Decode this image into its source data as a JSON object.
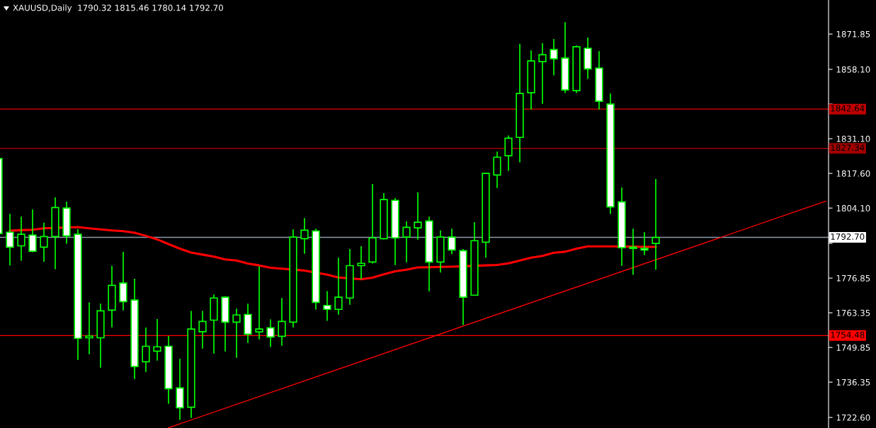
{
  "chart_data": {
    "type": "candlestick",
    "title": "XAUUSD,Daily  1790.32 1815.46 1780.14 1792.70",
    "color": "#00ff00",
    "categories": [
      null,
      null,
      null,
      null,
      null,
      null,
      null,
      null,
      null,
      null,
      null,
      null,
      null,
      null,
      null,
      null,
      null,
      null,
      null,
      null,
      null,
      null,
      null,
      null,
      null,
      null,
      null,
      null,
      null,
      null,
      null,
      null,
      null,
      null,
      null,
      null,
      null,
      null,
      null,
      null,
      null,
      null,
      null,
      null,
      null,
      null,
      null,
      null,
      null,
      null,
      null,
      null,
      null,
      null,
      null,
      null,
      null,
      null,
      null,
      null,
      null,
      null,
      null,
      null,
      null,
      null,
      null,
      null,
      null,
      null,
      null,
      null,
      null,
      null
    ],
    "ohlc": [
      [
        1823.4,
        1823.4,
        1794.2,
        1794.2
      ],
      [
        1794.7,
        1801.9,
        1781.8,
        1788.9
      ],
      [
        1789.4,
        1800.8,
        1783.6,
        1793.9
      ],
      [
        1793.6,
        1803.6,
        1786.9,
        1787.3
      ],
      [
        1788.9,
        1798.4,
        1783.2,
        1793.0
      ],
      [
        1793.0,
        1808.3,
        1780.3,
        1804.3
      ],
      [
        1804.1,
        1806.6,
        1790.2,
        1793.3
      ],
      [
        1793.9,
        1795.9,
        1745.0,
        1753.4
      ],
      [
        1753.6,
        1767.4,
        1747.2,
        1754.3
      ],
      [
        1753.6,
        1766.9,
        1742.0,
        1764.1
      ],
      [
        1764.4,
        1781.6,
        1757.7,
        1774.0
      ],
      [
        1774.9,
        1787.1,
        1764.3,
        1767.7
      ],
      [
        1768.3,
        1776.6,
        1737.6,
        1742.4
      ],
      [
        1744.3,
        1757.6,
        1740.3,
        1750.3
      ],
      [
        1748.4,
        1760.9,
        1744.7,
        1750.1
      ],
      [
        1750.3,
        1754.3,
        1727.9,
        1733.8
      ],
      [
        1734.1,
        1745.4,
        1721.7,
        1726.4
      ],
      [
        1726.6,
        1764.1,
        1722.4,
        1757.0
      ],
      [
        1756.0,
        1764.1,
        1749.4,
        1760.0
      ],
      [
        1760.5,
        1770.5,
        1747.5,
        1769.1
      ],
      [
        1769.4,
        1769.8,
        1748.3,
        1759.7
      ],
      [
        1759.7,
        1765.0,
        1745.8,
        1762.5
      ],
      [
        1762.7,
        1766.9,
        1751.6,
        1755.0
      ],
      [
        1755.9,
        1781.4,
        1753.0,
        1757.0
      ],
      [
        1757.5,
        1760.8,
        1750.0,
        1753.9
      ],
      [
        1754.2,
        1769.1,
        1750.5,
        1760.0
      ],
      [
        1759.7,
        1795.8,
        1757.7,
        1792.8
      ],
      [
        1792.2,
        1800.2,
        1786.3,
        1795.5
      ],
      [
        1795.2,
        1796.1,
        1764.6,
        1767.4
      ],
      [
        1766.2,
        1771.8,
        1760.2,
        1764.7
      ],
      [
        1764.7,
        1784.8,
        1762.6,
        1769.4
      ],
      [
        1769.1,
        1788.2,
        1766.5,
        1781.7
      ],
      [
        1781.7,
        1789.3,
        1776.5,
        1782.6
      ],
      [
        1783.1,
        1813.5,
        1782.5,
        1792.5
      ],
      [
        1792.2,
        1809.9,
        1791.9,
        1807.4
      ],
      [
        1807.1,
        1808.0,
        1781.9,
        1792.5
      ],
      [
        1792.8,
        1798.9,
        1783.0,
        1796.6
      ],
      [
        1796.4,
        1810.2,
        1791.8,
        1798.6
      ],
      [
        1799.1,
        1800.8,
        1771.7,
        1783.1
      ],
      [
        1783.1,
        1795.5,
        1779.0,
        1792.8
      ],
      [
        1792.8,
        1796.1,
        1786.2,
        1787.8
      ],
      [
        1787.5,
        1788.2,
        1758.6,
        1769.4
      ],
      [
        1770.2,
        1798.6,
        1770.2,
        1791.4
      ],
      [
        1790.8,
        1817.9,
        1784.8,
        1817.6
      ],
      [
        1817.0,
        1826.1,
        1811.9,
        1823.9
      ],
      [
        1824.5,
        1832.4,
        1818.6,
        1831.3
      ],
      [
        1831.6,
        1868.0,
        1821.9,
        1848.7
      ],
      [
        1849.0,
        1865.5,
        1842.5,
        1861.4
      ],
      [
        1861.1,
        1868.3,
        1844.7,
        1863.8
      ],
      [
        1865.8,
        1869.9,
        1855.8,
        1862.2
      ],
      [
        1862.5,
        1876.5,
        1848.9,
        1850.1
      ],
      [
        1849.8,
        1867.4,
        1848.9,
        1866.9
      ],
      [
        1866.3,
        1870.5,
        1854.4,
        1858.3
      ],
      [
        1858.6,
        1865.2,
        1842.5,
        1845.7
      ],
      [
        1844.6,
        1848.7,
        1801.8,
        1804.6
      ],
      [
        1806.5,
        1812.1,
        1781.6,
        1788.7
      ],
      [
        1788.9,
        1796.1,
        1778.1,
        1788.4
      ],
      [
        1788.4,
        1794.7,
        1785.8,
        1787.8
      ],
      [
        1790.32,
        1815.46,
        1780.14,
        1792.7
      ],
      null,
      null,
      null,
      null,
      null,
      null,
      null,
      null,
      null,
      null,
      null,
      null,
      null,
      null,
      null
    ],
    "series": [
      {
        "type": "line",
        "color": "#ff0000",
        "values": [
          null,
          1795.3,
          1795.5,
          1795.7,
          1796.2,
          null,
          null,
          1796.7,
          1796.2,
          1795.8,
          1795.4,
          1795.1,
          1794.5,
          1793.3,
          1791.9,
          1790.1,
          1788.3,
          1786.8,
          1786.0,
          1785.2,
          1784.1,
          1783.7,
          1782.5,
          1781.8,
          1780.9,
          1780.5,
          null,
          1779.8,
          null,
          1778.2,
          1777.1,
          null,
          1776.4,
          1777.0,
          1778.3,
          1779.5,
          1780.1,
          1781.0,
          1781.1,
          1781.2,
          1781.3,
          null,
          null,
          1781.8,
          1782.0,
          1782.6,
          1783.7,
          1784.8,
          1785.5,
          1786.7,
          1787.1,
          1788.3,
          1789.2,
          1789.2,
          1789.2,
          null,
          1789.1,
          1789.0,
          1789.0,
          null,
          null,
          null,
          null,
          null,
          null,
          null,
          null,
          null,
          null,
          null,
          null,
          null,
          null,
          null
        ]
      },
      {
        "type": "line",
        "color": "#ff0000",
        "values": [
          null,
          null,
          null,
          null,
          null,
          null,
          null,
          null,
          null,
          null,
          null,
          null,
          null,
          null,
          null,
          1718.6,
          null,
          null,
          null,
          null,
          null,
          null,
          null,
          null,
          null,
          null,
          null,
          null,
          null,
          null,
          null,
          null,
          null,
          null,
          null,
          null,
          null,
          null,
          null,
          null,
          null,
          null,
          null,
          null,
          null,
          null,
          null,
          null,
          null,
          null,
          null,
          null,
          null,
          null,
          null,
          null,
          null,
          null,
          null,
          null,
          null,
          null,
          null,
          null,
          null,
          null,
          null,
          null,
          null,
          null,
          null,
          null,
          null,
          1806.8
        ]
      }
    ],
    "ref_lines": [
      {
        "axis": "y",
        "value": 1842.64,
        "label": "1842.64",
        "color": "#c00000"
      },
      {
        "axis": "y",
        "value": 1827.34,
        "label": "1827.34",
        "color": "#a00000"
      },
      {
        "axis": "y",
        "value": 1792.7,
        "label": "1792.70",
        "color": "#8c9aa8"
      },
      {
        "axis": "y",
        "value": 1754.48,
        "label": "1754.48",
        "color": "#ff0000"
      }
    ],
    "ylim": [
      1718.5,
      1885.1
    ],
    "yticks": [
      {
        "value": 1722.6,
        "label": "1722.60"
      },
      1736.35,
      1749.85,
      1763.35,
      1776.85,
      {
        "value": 1790.35,
        "label": null
      },
      {
        "value": 1804.1,
        "label": "1804.10"
      },
      {
        "value": 1817.6,
        "label": "1817.60"
      },
      {
        "value": 1831.1,
        "label": "1831.10"
      },
      {
        "value": 1844.6,
        "label": null
      },
      {
        "value": 1858.1,
        "label": "1858.10"
      },
      1871.85
    ],
    "tick_labels": "y",
    "grid": false
  }
}
